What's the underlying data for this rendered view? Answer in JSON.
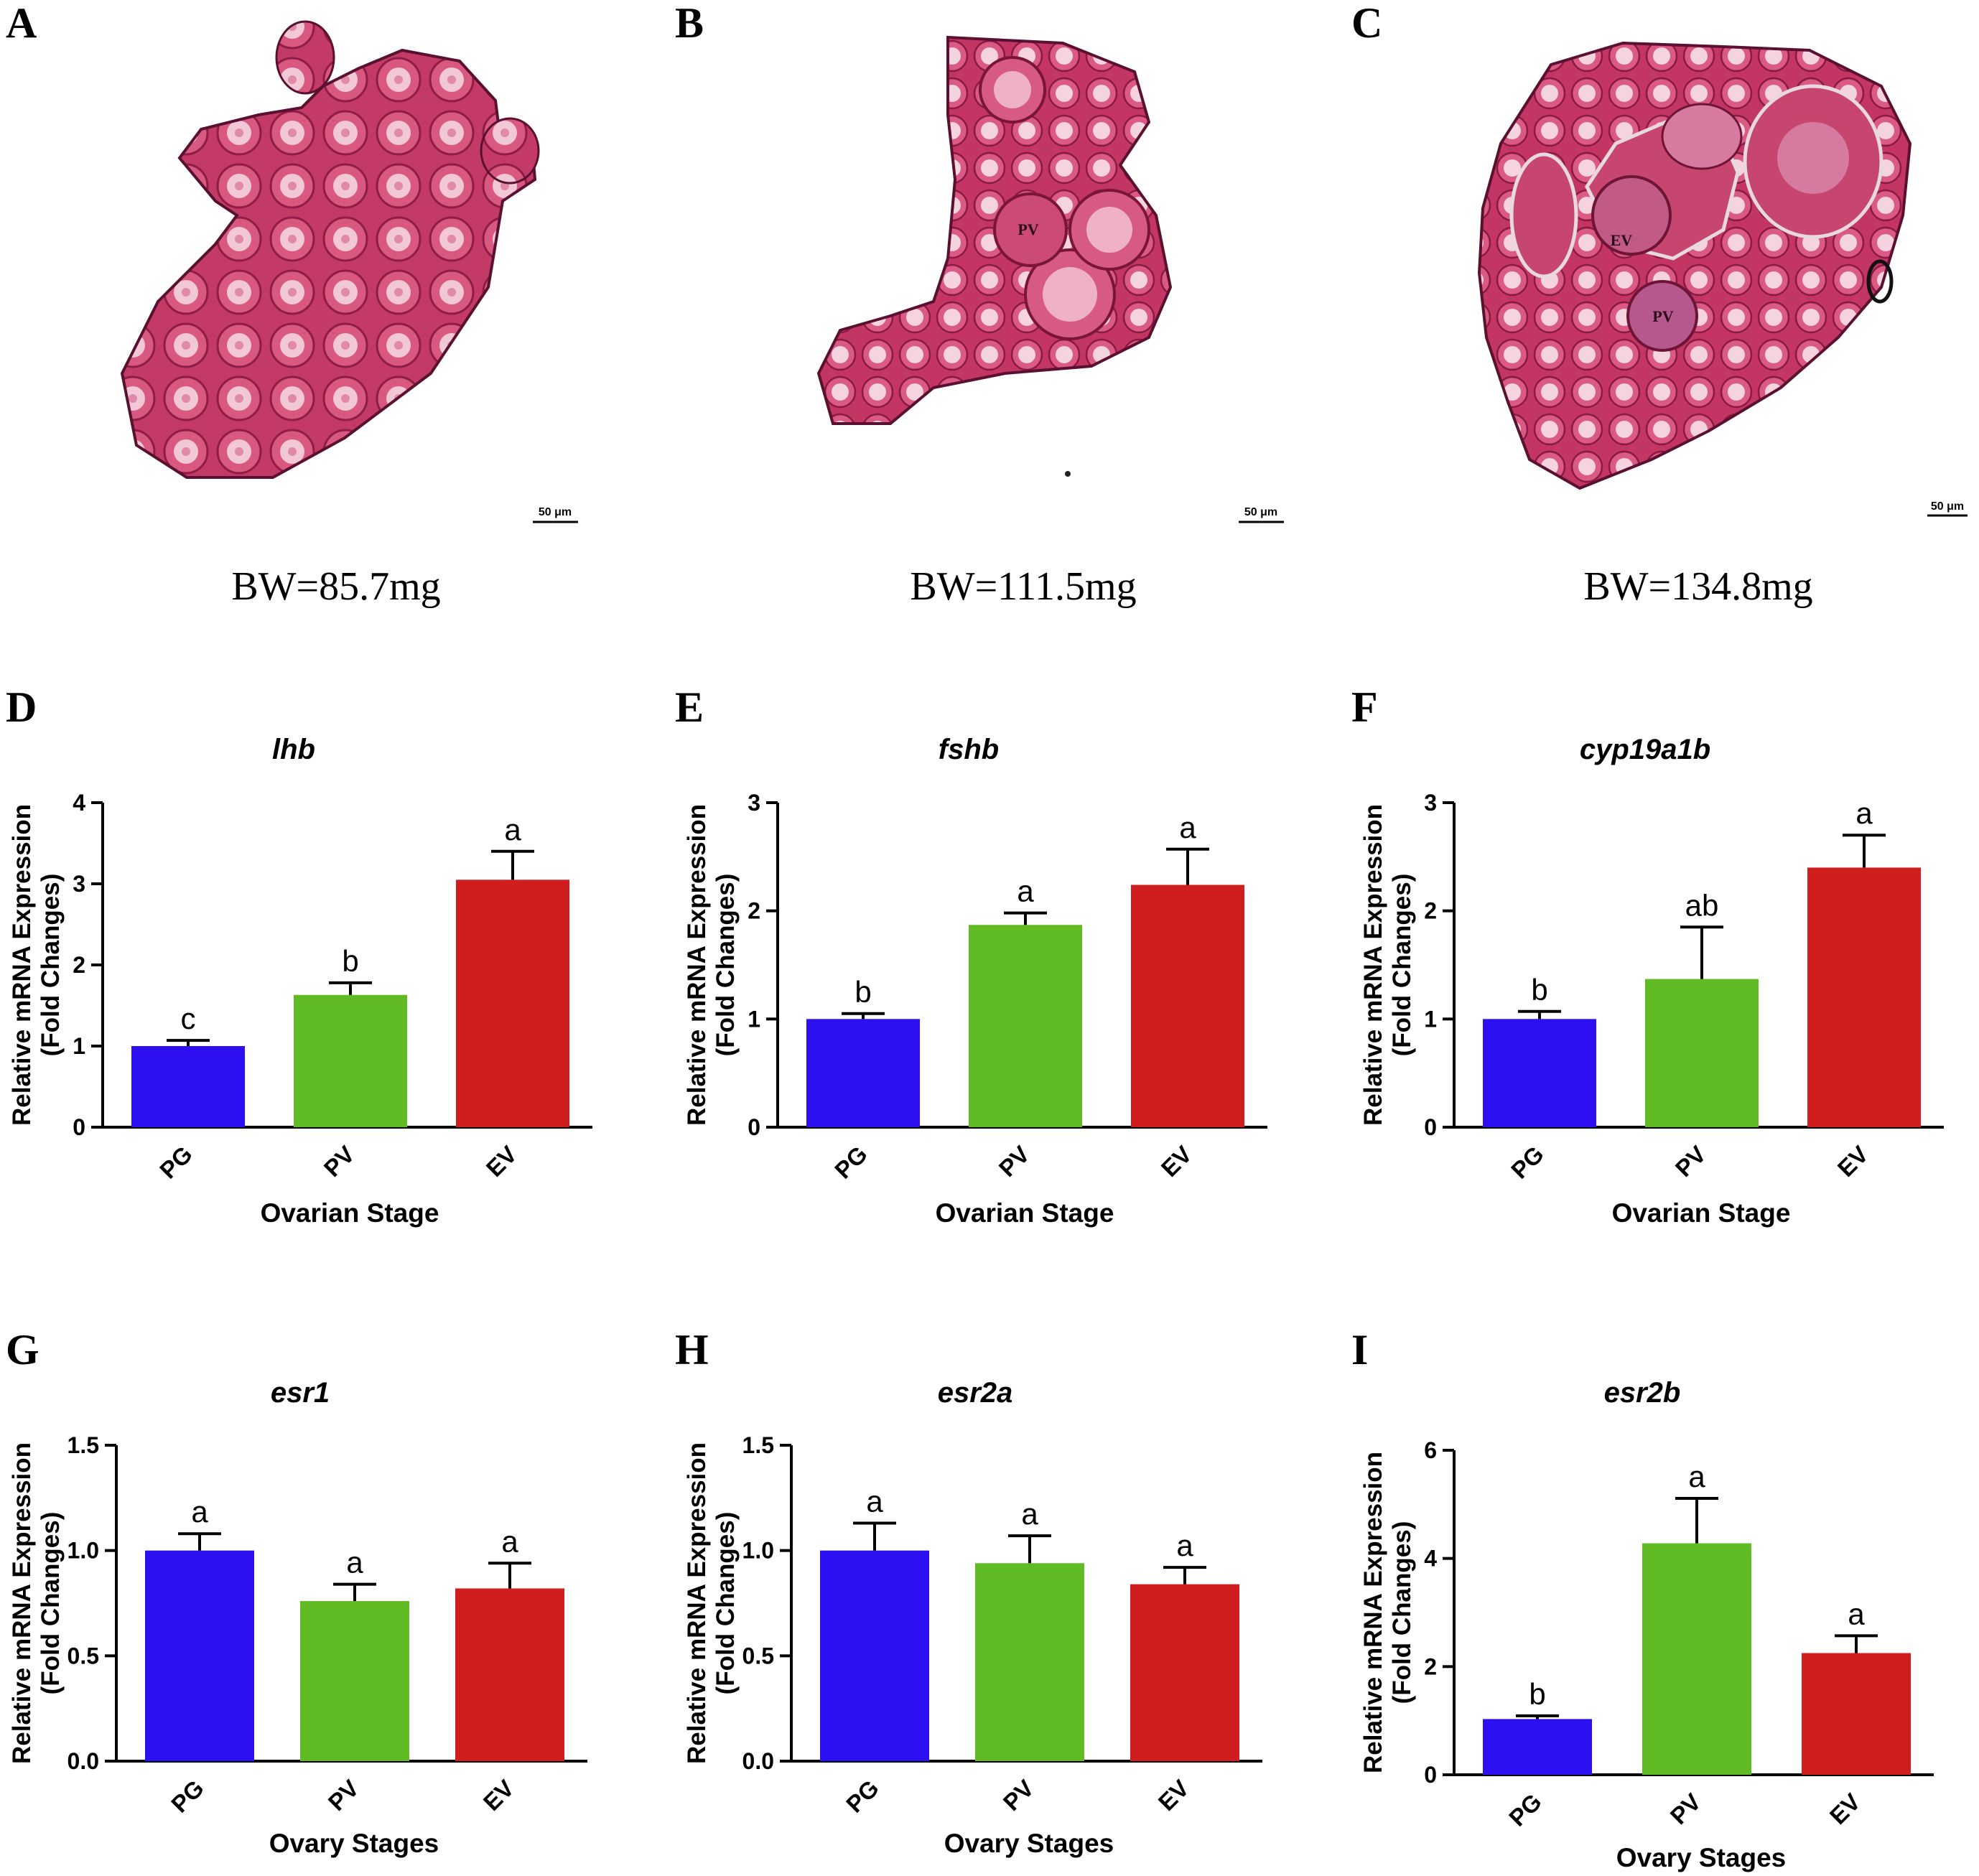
{
  "histology": [
    {
      "letter": "A",
      "bw": "BW=85.7mg",
      "scale": "50 μm",
      "labels": []
    },
    {
      "letter": "B",
      "bw": "BW=111.5mg",
      "scale": "50 μm",
      "labels": [
        "PV"
      ]
    },
    {
      "letter": "C",
      "bw": "BW=134.8mg",
      "scale": "50 μm",
      "labels": [
        "EV",
        "PV"
      ]
    }
  ],
  "colors": {
    "PG": "#2d10f2",
    "PV": "#5fba23",
    "EV": "#d01e1e",
    "tissue": "#c9406a",
    "nucleus": "#f2c7d6"
  },
  "chart_data": [
    {
      "panel": "D",
      "type": "bar",
      "title": "lhb",
      "ylabel": "Relative mRNA Expression\n(Fold Changes)",
      "xlabel": "Ovarian Stage",
      "categories": [
        "PG",
        "PV",
        "EV"
      ],
      "values": [
        1.0,
        1.63,
        3.05
      ],
      "errors": [
        0.07,
        0.15,
        0.35
      ],
      "significance": [
        "c",
        "b",
        "a"
      ],
      "ylim": [
        0,
        4
      ],
      "yticks": [
        "0",
        "1",
        "2",
        "3",
        "4"
      ]
    },
    {
      "panel": "E",
      "type": "bar",
      "title": "fshb",
      "ylabel": "Relative mRNA Expression\n(Fold Changes)",
      "xlabel": "Ovarian Stage",
      "categories": [
        "PG",
        "PV",
        "EV"
      ],
      "values": [
        1.0,
        1.87,
        2.24
      ],
      "errors": [
        0.05,
        0.11,
        0.33
      ],
      "significance": [
        "b",
        "a",
        "a"
      ],
      "ylim": [
        0,
        3
      ],
      "yticks": [
        "0",
        "1",
        "2",
        "3"
      ]
    },
    {
      "panel": "F",
      "type": "bar",
      "title": "cyp19a1b",
      "ylabel": "Relative mRNA Expression\n(Fold Changes)",
      "xlabel": "Ovarian Stage",
      "categories": [
        "PG",
        "PV",
        "EV"
      ],
      "values": [
        1.0,
        1.37,
        2.4
      ],
      "errors": [
        0.07,
        0.48,
        0.3
      ],
      "significance": [
        "b",
        "ab",
        "a"
      ],
      "ylim": [
        0,
        3
      ],
      "yticks": [
        "0",
        "1",
        "2",
        "3"
      ]
    },
    {
      "panel": "G",
      "type": "bar",
      "title": "esr1",
      "ylabel": "Relative mRNA Expression\n(Fold Changes)",
      "xlabel": "Ovary Stages",
      "categories": [
        "PG",
        "PV",
        "EV"
      ],
      "values": [
        1.0,
        0.76,
        0.82
      ],
      "errors": [
        0.08,
        0.08,
        0.12
      ],
      "significance": [
        "a",
        "a",
        "a"
      ],
      "ylim": [
        0,
        1.5
      ],
      "yticks": [
        "0.0",
        "0.5",
        "1.0",
        "1.5"
      ]
    },
    {
      "panel": "H",
      "type": "bar",
      "title": "esr2a",
      "ylabel": "Relative mRNA Expression\n(Fold Changes)",
      "xlabel": "Ovary Stages",
      "categories": [
        "PG",
        "PV",
        "EV"
      ],
      "values": [
        1.0,
        0.94,
        0.84
      ],
      "errors": [
        0.13,
        0.13,
        0.08
      ],
      "significance": [
        "a",
        "a",
        "a"
      ],
      "ylim": [
        0,
        1.5
      ],
      "yticks": [
        "0.0",
        "0.5",
        "1.0",
        "1.5"
      ]
    },
    {
      "panel": "I",
      "type": "bar",
      "title": "esr2b",
      "ylabel": "Relative mRNA Expression\n(Fold Changes)",
      "xlabel": "Ovary Stages",
      "categories": [
        "PG",
        "PV",
        "EV"
      ],
      "values": [
        1.03,
        4.28,
        2.25
      ],
      "errors": [
        0.06,
        0.83,
        0.32
      ],
      "significance": [
        "b",
        "a",
        "a"
      ],
      "ylim": [
        0,
        6
      ],
      "yticks": [
        "0",
        "2",
        "4",
        "6"
      ]
    }
  ]
}
